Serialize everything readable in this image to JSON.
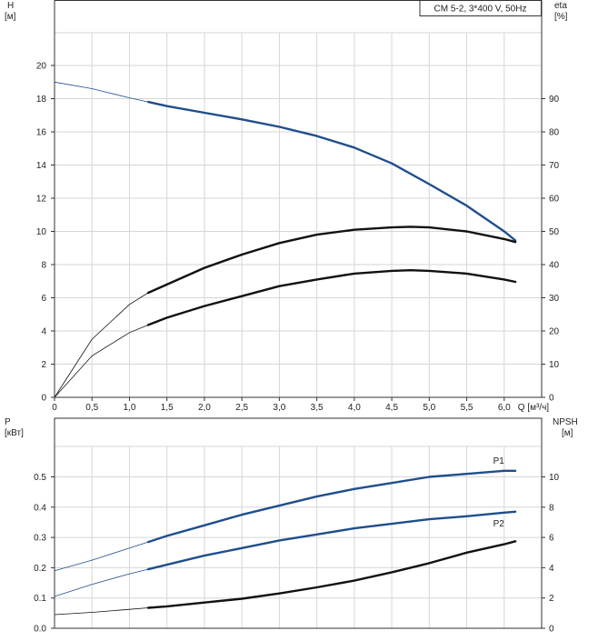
{
  "chart_data": [
    {
      "type": "line",
      "title": "CM 5-2, 3*400 V, 50Hz",
      "xlabel": "Q [м³/ч]",
      "ylabel_left": "H",
      "ylabel_left_unit": "[м]",
      "ylabel_right": "eta",
      "ylabel_right_unit": "[%]",
      "xlim": [
        0,
        6.5
      ],
      "ylim_left": [
        0,
        22
      ],
      "ylim_right": [
        0,
        110
      ],
      "x_ticks": [
        "0",
        "0,5",
        "1,0",
        "1,5",
        "2,0",
        "2,5",
        "3,0",
        "3,5",
        "4,0",
        "4,5",
        "5,0",
        "5,5",
        "6,0"
      ],
      "y_left_ticks": [
        "0",
        "2",
        "4",
        "6",
        "8",
        "10",
        "12",
        "14",
        "16",
        "18",
        "20"
      ],
      "y_right_ticks": [
        "0",
        "10",
        "20",
        "30",
        "40",
        "50",
        "60",
        "70",
        "80",
        "90"
      ],
      "grid": true,
      "series": [
        {
          "axis": "left",
          "color": "#1f4e8c",
          "x": [
            0,
            0.5,
            1.0,
            1.25,
            1.5,
            2.0,
            2.5,
            3.0,
            3.5,
            4.0,
            4.5,
            5.0,
            5.5,
            6.0,
            6.15
          ],
          "values": [
            19.0,
            18.6,
            18.05,
            17.8,
            17.55,
            17.15,
            16.75,
            16.3,
            15.75,
            15.05,
            14.1,
            12.85,
            11.55,
            10.0,
            9.45
          ]
        },
        {
          "axis": "right",
          "color": "#111111",
          "x": [
            0,
            0.5,
            1.0,
            1.25,
            1.5,
            2.0,
            2.5,
            3.0,
            3.5,
            4.0,
            4.5,
            4.75,
            5.0,
            5.5,
            6.0,
            6.15
          ],
          "values": [
            0,
            17.5,
            28.0,
            31.5,
            34.0,
            39.0,
            43.0,
            46.5,
            49.0,
            50.5,
            51.2,
            51.4,
            51.2,
            50.0,
            47.7,
            46.8
          ]
        },
        {
          "axis": "right",
          "color": "#111111",
          "x": [
            0,
            0.5,
            1.0,
            1.25,
            1.5,
            2.0,
            2.5,
            3.0,
            3.5,
            4.0,
            4.5,
            4.75,
            5.0,
            5.5,
            6.0,
            6.15
          ],
          "values": [
            0,
            12.5,
            19.5,
            21.8,
            24.0,
            27.5,
            30.5,
            33.5,
            35.5,
            37.3,
            38.1,
            38.3,
            38.1,
            37.3,
            35.5,
            34.8
          ]
        }
      ]
    },
    {
      "type": "line",
      "xlabel": "",
      "ylabel_left": "P",
      "ylabel_left_unit": "[кВт]",
      "ylabel_right": "NPSH",
      "ylabel_right_unit": "[м]",
      "xlim": [
        0,
        6.5
      ],
      "ylim_left": [
        0,
        0.6
      ],
      "ylim_right": [
        0,
        12
      ],
      "y_left_ticks": [
        "0.0",
        "0.1",
        "0.2",
        "0.3",
        "0.4",
        "0.5"
      ],
      "y_right_ticks": [
        "0",
        "2",
        "4",
        "6",
        "8",
        "10"
      ],
      "grid": true,
      "series": [
        {
          "name": "P1",
          "axis": "left",
          "color": "#1f4e8c",
          "x": [
            0,
            0.5,
            1.0,
            1.25,
            1.5,
            2.0,
            2.5,
            3.0,
            3.5,
            4.0,
            4.5,
            5.0,
            5.5,
            6.0,
            6.15
          ],
          "values": [
            0.19,
            0.225,
            0.265,
            0.285,
            0.305,
            0.34,
            0.375,
            0.405,
            0.435,
            0.46,
            0.48,
            0.5,
            0.51,
            0.52,
            0.52
          ]
        },
        {
          "name": "P2",
          "axis": "left",
          "color": "#1f4e8c",
          "x": [
            0,
            0.5,
            1.0,
            1.25,
            1.5,
            2.0,
            2.5,
            3.0,
            3.5,
            4.0,
            4.5,
            5.0,
            5.5,
            6.0,
            6.15
          ],
          "values": [
            0.105,
            0.145,
            0.18,
            0.195,
            0.21,
            0.24,
            0.265,
            0.29,
            0.31,
            0.33,
            0.345,
            0.36,
            0.37,
            0.382,
            0.385
          ]
        },
        {
          "axis": "right",
          "color": "#111111",
          "x": [
            0,
            0.5,
            1.0,
            1.25,
            1.5,
            2.0,
            2.5,
            3.0,
            3.5,
            4.0,
            4.5,
            5.0,
            5.5,
            6.0,
            6.15
          ],
          "values": [
            0.9,
            1.05,
            1.25,
            1.35,
            1.45,
            1.7,
            1.95,
            2.3,
            2.7,
            3.15,
            3.7,
            4.3,
            5.0,
            5.55,
            5.75
          ]
        }
      ]
    }
  ]
}
